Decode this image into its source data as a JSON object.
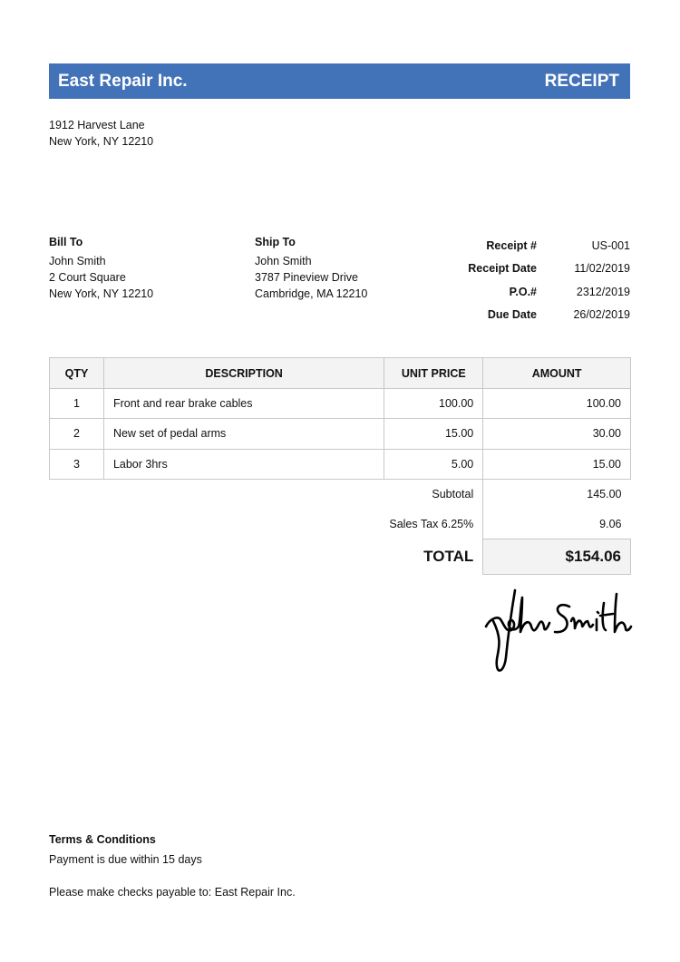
{
  "company": {
    "name": "East Repair Inc.",
    "address": [
      "1912 Harvest Lane",
      "New York, NY 12210"
    ]
  },
  "doc_title": "RECEIPT",
  "header_color": "#4272b8",
  "bill_to": {
    "label": "Bill To",
    "lines": [
      "John Smith",
      "2 Court Square",
      "New York, NY 12210"
    ]
  },
  "ship_to": {
    "label": "Ship To",
    "lines": [
      "John Smith",
      "3787 Pineview Drive",
      "Cambridge, MA 12210"
    ]
  },
  "meta": [
    {
      "label": "Receipt #",
      "value": "US-001"
    },
    {
      "label": "Receipt Date",
      "value": "11/02/2019"
    },
    {
      "label": "P.O.#",
      "value": "2312/2019"
    },
    {
      "label": "Due Date",
      "value": "26/02/2019"
    }
  ],
  "table": {
    "headers": [
      "QTY",
      "DESCRIPTION",
      "UNIT PRICE",
      "AMOUNT"
    ],
    "rows": [
      {
        "qty": "1",
        "desc": "Front and rear brake cables",
        "unit": "100.00",
        "amount": "100.00"
      },
      {
        "qty": "2",
        "desc": "New set of pedal arms",
        "unit": "15.00",
        "amount": "30.00"
      },
      {
        "qty": "3",
        "desc": "Labor 3hrs",
        "unit": "5.00",
        "amount": "15.00"
      }
    ],
    "subtotal_label": "Subtotal",
    "subtotal": "145.00",
    "tax_label": "Sales Tax 6.25%",
    "tax": "9.06",
    "total_label": "TOTAL",
    "total": "$154.06"
  },
  "signature": "John Smith",
  "terms": {
    "title": "Terms & Conditions",
    "line1": "Payment is due within 15 days",
    "line2": "Please make checks payable to: East Repair Inc."
  }
}
